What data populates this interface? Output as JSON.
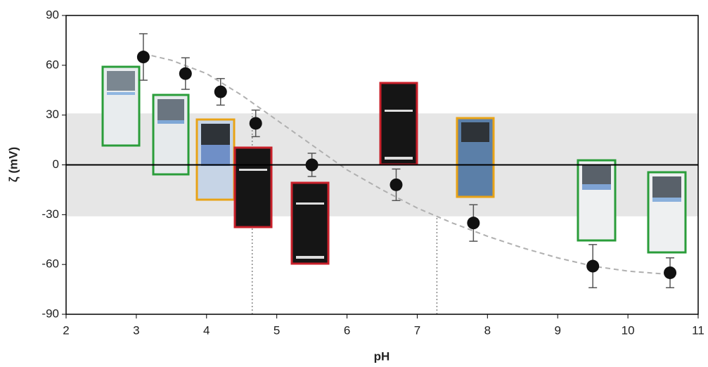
{
  "chart_data": {
    "type": "scatter",
    "x_label": "pH",
    "y_label": "ζ (mV)",
    "series": [
      {
        "name": "ζ",
        "color": "#111111",
        "x": [
          3.1,
          3.7,
          4.2,
          4.7,
          5.5,
          6.7,
          7.8,
          9.5,
          10.6
        ],
        "values": [
          65,
          55,
          44,
          25,
          0,
          -12,
          -35,
          -61,
          -65
        ],
        "errors": [
          14,
          9.5,
          8,
          8,
          7,
          9.5,
          11,
          13,
          9
        ]
      }
    ],
    "fit_curve": {
      "color": "#b0b0b0",
      "x": [
        3.1,
        3.5,
        4,
        4.5,
        5,
        5.5,
        6,
        6.5,
        7,
        7.5,
        8,
        8.5,
        9,
        9.5,
        10,
        10.6
      ],
      "values": [
        67,
        63,
        55,
        42,
        27,
        12,
        -3,
        -15,
        -26,
        -35,
        -43,
        -50,
        -56,
        -61,
        -64,
        -66
      ]
    },
    "shaded_band": [
      -31,
      31
    ],
    "reference_lines_x": [
      4.65,
      7.28
    ],
    "xlim": [
      2,
      11
    ],
    "xticks": [
      2,
      3,
      4,
      5,
      6,
      7,
      8,
      9,
      10,
      11
    ],
    "ylim": [
      -90,
      90
    ],
    "yticks": [
      -90,
      -60,
      -30,
      0,
      30,
      60,
      90
    ]
  }
}
